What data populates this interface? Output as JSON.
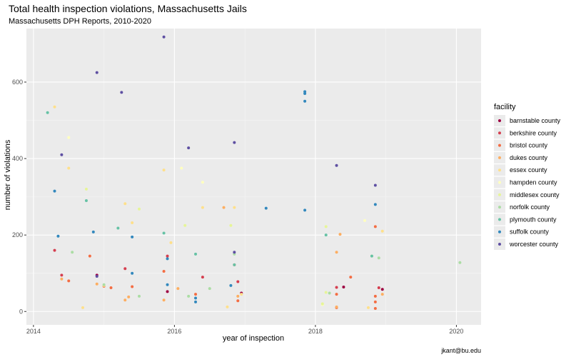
{
  "chart_data": {
    "type": "scatter",
    "title": "Total health inspection violations, Massachusetts Jails",
    "subtitle": "Massachusetts DPH Reports, 2010-2020",
    "xlabel": "year of inspection",
    "ylabel": "number of violations",
    "caption": "jkant@bu.edu",
    "xlim": [
      2013.9,
      2020.35
    ],
    "ylim": [
      -35,
      740
    ],
    "x_ticks": [
      2014,
      2016,
      2018,
      2020
    ],
    "y_ticks": [
      0,
      200,
      400,
      600
    ],
    "grid": true,
    "legend": {
      "title": "facility",
      "position": "right"
    },
    "series": [
      {
        "name": "barnstable county",
        "color": "#9e0142",
        "points": [
          [
            14.9,
            95
          ],
          [
            15.9,
            52
          ],
          [
            16.95,
            48
          ],
          [
            18.4,
            64
          ],
          [
            18.95,
            58
          ]
        ]
      },
      {
        "name": "berkshire county",
        "color": "#d53e4f",
        "points": [
          [
            14.3,
            160
          ],
          [
            14.4,
            95
          ],
          [
            15.3,
            112
          ],
          [
            15.9,
            145
          ],
          [
            16.4,
            90
          ],
          [
            16.9,
            78
          ],
          [
            18.3,
            63
          ],
          [
            18.9,
            62
          ]
        ]
      },
      {
        "name": "bristol county",
        "color": "#f46d43",
        "points": [
          [
            14.5,
            80
          ],
          [
            14.8,
            145
          ],
          [
            15.0,
            66
          ],
          [
            15.1,
            62
          ],
          [
            15.4,
            65
          ],
          [
            15.85,
            105
          ],
          [
            16.3,
            45
          ],
          [
            16.85,
            122
          ],
          [
            16.9,
            28
          ],
          [
            18.3,
            45
          ],
          [
            18.3,
            10
          ],
          [
            18.5,
            90
          ],
          [
            18.85,
            222
          ],
          [
            18.85,
            40
          ],
          [
            18.85,
            25
          ],
          [
            18.85,
            8
          ]
        ]
      },
      {
        "name": "dukes county",
        "color": "#fdae61",
        "points": [
          [
            14.4,
            85
          ],
          [
            14.9,
            72
          ],
          [
            15.3,
            30
          ],
          [
            15.35,
            38
          ],
          [
            15.85,
            30
          ],
          [
            16.05,
            60
          ],
          [
            16.7,
            272
          ],
          [
            16.9,
            40
          ],
          [
            18.3,
            12
          ],
          [
            18.3,
            155
          ],
          [
            18.35,
            202
          ],
          [
            18.95,
            45
          ]
        ]
      },
      {
        "name": "essex county",
        "color": "#fee08b",
        "points": [
          [
            14.3,
            535
          ],
          [
            14.5,
            375
          ],
          [
            14.7,
            10
          ],
          [
            15.0,
            68
          ],
          [
            15.3,
            282
          ],
          [
            15.4,
            232
          ],
          [
            15.85,
            370
          ],
          [
            15.95,
            180
          ],
          [
            16.4,
            272
          ],
          [
            16.75,
            12
          ],
          [
            16.85,
            272
          ],
          [
            16.95,
            45
          ],
          [
            18.75,
            10
          ],
          [
            18.95,
            210
          ]
        ]
      },
      {
        "name": "hampden county",
        "color": "#ffffbf",
        "points": [
          [
            14.5,
            455
          ],
          [
            16.1,
            375
          ],
          [
            16.4,
            338
          ],
          [
            18.1,
            18
          ],
          [
            18.7,
            238
          ]
        ]
      },
      {
        "name": "middlesex county",
        "color": "#e6f598",
        "points": [
          [
            14.75,
            320
          ],
          [
            15.5,
            268
          ],
          [
            16.15,
            225
          ],
          [
            16.8,
            225
          ],
          [
            18.1,
            20
          ],
          [
            18.15,
            222
          ],
          [
            18.15,
            50
          ],
          [
            18.8,
            145
          ]
        ]
      },
      {
        "name": "norfolk county",
        "color": "#abdda4",
        "points": [
          [
            14.55,
            155
          ],
          [
            15.0,
            70
          ],
          [
            15.5,
            40
          ],
          [
            16.2,
            40
          ],
          [
            16.5,
            60
          ],
          [
            16.85,
            150
          ],
          [
            18.2,
            48
          ],
          [
            18.9,
            140
          ],
          [
            20.05,
            128
          ]
        ]
      },
      {
        "name": "plymouth county",
        "color": "#66c2a5",
        "points": [
          [
            14.2,
            520
          ],
          [
            14.75,
            290
          ],
          [
            15.2,
            218
          ],
          [
            15.85,
            205
          ],
          [
            16.3,
            150
          ],
          [
            16.85,
            122
          ],
          [
            18.15,
            200
          ],
          [
            18.8,
            145
          ]
        ]
      },
      {
        "name": "suffolk county",
        "color": "#3288bd",
        "points": [
          [
            14.3,
            315
          ],
          [
            14.35,
            197
          ],
          [
            14.85,
            208
          ],
          [
            15.4,
            195
          ],
          [
            15.4,
            100
          ],
          [
            15.9,
            138
          ],
          [
            15.9,
            70
          ],
          [
            16.3,
            35
          ],
          [
            16.3,
            25
          ],
          [
            16.8,
            68
          ],
          [
            17.3,
            270
          ],
          [
            17.85,
            575
          ],
          [
            17.85,
            570
          ],
          [
            17.85,
            550
          ],
          [
            17.85,
            265
          ],
          [
            18.85,
            280
          ]
        ]
      },
      {
        "name": "worcester county",
        "color": "#5e4fa2",
        "points": [
          [
            14.4,
            410
          ],
          [
            14.9,
            625
          ],
          [
            14.9,
            92
          ],
          [
            15.25,
            573
          ],
          [
            15.85,
            718
          ],
          [
            16.2,
            428
          ],
          [
            16.85,
            442
          ],
          [
            16.85,
            155
          ],
          [
            18.3,
            382
          ],
          [
            18.85,
            330
          ]
        ]
      }
    ]
  }
}
